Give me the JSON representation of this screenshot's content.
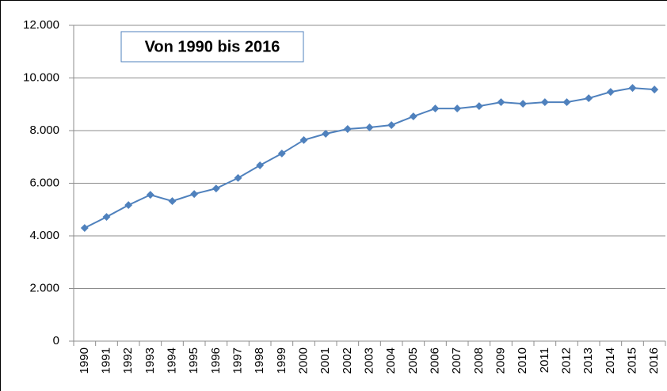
{
  "chart_data": {
    "type": "line",
    "title": "Von 1990 bis 2016",
    "categories": [
      "1990",
      "1991",
      "1992",
      "1993",
      "1994",
      "1995",
      "1996",
      "1997",
      "1998",
      "1999",
      "2000",
      "2001",
      "2002",
      "2003",
      "2004",
      "2005",
      "2006",
      "2007",
      "2008",
      "2009",
      "2010",
      "2011",
      "2012",
      "2013",
      "2014",
      "2015",
      "2016"
    ],
    "values": [
      4300,
      4720,
      5170,
      5560,
      5320,
      5590,
      5800,
      6200,
      6680,
      7130,
      7640,
      7880,
      8060,
      8120,
      8210,
      8540,
      8840,
      8840,
      8930,
      9080,
      9020,
      9080,
      9080,
      9230,
      9470,
      9620,
      9560
    ],
    "color": "#4f81bd",
    "ylim": [
      0,
      12000
    ],
    "yticks": [
      0,
      {
        "value": 2000,
        "label": "2.000"
      },
      {
        "value": 4000,
        "label": "4.000"
      },
      {
        "value": 6000,
        "label": "6.000"
      },
      {
        "value": 8000,
        "label": "8.000"
      },
      {
        "value": 10000,
        "label": "10.000"
      },
      {
        "value": 12000,
        "label": "12.000"
      }
    ],
    "grid": true
  }
}
